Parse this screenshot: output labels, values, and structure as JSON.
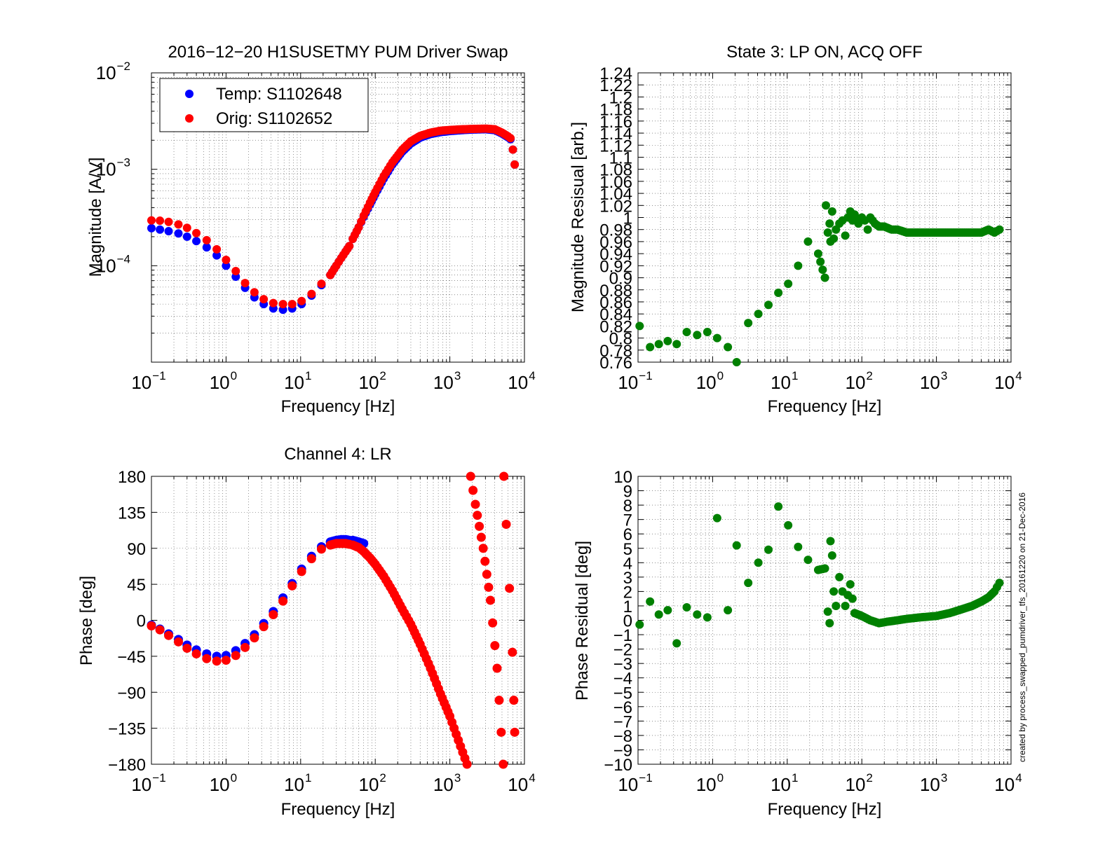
{
  "footer_note": "created by process_swapped_pumdriver_tfs_20161220 on 21-Dec-2016",
  "colors": {
    "temp": "#0000ff",
    "orig": "#ff0000",
    "residual": "#008000"
  },
  "chart_data": [
    {
      "id": "mag",
      "type": "scatter",
      "title": "2016−12−20 H1SUSETMY PUM Driver Swap",
      "xlabel": "Frequency [Hz]",
      "ylabel": "Magnitude [A/V]",
      "xscale": "log",
      "yscale": "log",
      "xlim": [
        0.1,
        10000
      ],
      "ylim": [
        1e-05,
        0.01
      ],
      "x_ticks": [
        0.1,
        1,
        10,
        100,
        1000,
        10000
      ],
      "x_tick_labels": [
        [
          "10",
          "−1"
        ],
        [
          "10",
          "0"
        ],
        [
          "10",
          "1"
        ],
        [
          "10",
          "2"
        ],
        [
          "10",
          "3"
        ],
        [
          "10",
          "4"
        ]
      ],
      "y_ticks": [
        0.0001,
        0.001,
        0.01
      ],
      "y_tick_labels": [
        [
          "10",
          "−4"
        ],
        [
          "10",
          "−3"
        ],
        [
          "10",
          "−2"
        ]
      ],
      "grid": true,
      "legend": {
        "position": "top-left",
        "entries": [
          "Temp: S1102648",
          "Orig: S1102652"
        ]
      },
      "series": [
        {
          "name": "Temp: S1102648",
          "color": "#0000ff",
          "x": [
            0.1,
            0.13,
            0.17,
            0.23,
            0.3,
            0.4,
            0.55,
            0.75,
            1.0,
            1.35,
            1.8,
            2.4,
            3.2,
            4.3,
            5.8,
            7.7,
            10.3,
            14,
            19,
            25,
            30,
            35,
            40,
            45,
            50,
            60,
            70,
            85,
            100,
            130,
            170,
            230,
            300,
            400,
            550,
            750,
            1000,
            1500,
            2000,
            3000,
            4000,
            5000,
            6000,
            6500,
            7000,
            7400
          ],
          "y": [
            0.000245,
            0.000237,
            0.000228,
            0.000216,
            0.0002,
            0.00018,
            0.000155,
            0.000128,
            0.0001,
            7.7e-05,
            5.9e-05,
            4.7e-05,
            4e-05,
            3.6e-05,
            3.5e-05,
            3.6e-05,
            4e-05,
            4.9e-05,
            6.3e-05,
            8e-05,
            0.0001,
            0.00012,
            0.00014,
            0.00016,
            0.00019,
            0.00025,
            0.00032,
            0.00043,
            0.00055,
            0.0008,
            0.00112,
            0.00152,
            0.00185,
            0.00213,
            0.00232,
            0.00243,
            0.00249,
            0.00255,
            0.00258,
            0.0026,
            0.00255,
            0.00235,
            0.00215,
            0.00205,
            0.0016,
            0.00112
          ]
        },
        {
          "name": "Orig: S1102652",
          "color": "#ff0000",
          "x": [
            0.1,
            0.13,
            0.17,
            0.23,
            0.3,
            0.4,
            0.55,
            0.75,
            1.0,
            1.35,
            1.8,
            2.4,
            3.2,
            4.3,
            5.8,
            7.7,
            10.3,
            14,
            19,
            25,
            30,
            35,
            40,
            45,
            50,
            60,
            70,
            85,
            100,
            130,
            170,
            230,
            300,
            400,
            550,
            750,
            1000,
            1500,
            2000,
            3000,
            4000,
            5000,
            6000,
            6500,
            7000,
            7400
          ],
          "y": [
            0.000295,
            0.000293,
            0.000285,
            0.000268,
            0.000247,
            0.000218,
            0.000184,
            0.000148,
            0.000115,
            8.8e-05,
            6.6e-05,
            5.3e-05,
            4.5e-05,
            4.1e-05,
            4e-05,
            4e-05,
            4.3e-05,
            5.1e-05,
            6.5e-05,
            8e-05,
            0.0001,
            0.00012,
            0.00014,
            0.00016,
            0.00019,
            0.00025,
            0.00033,
            0.00045,
            0.00058,
            0.00085,
            0.00118,
            0.0016,
            0.00195,
            0.00222,
            0.0024,
            0.00251,
            0.00256,
            0.0026,
            0.00262,
            0.00264,
            0.0026,
            0.0024,
            0.0022,
            0.0021,
            0.0016,
            0.00112
          ]
        }
      ]
    },
    {
      "id": "magres",
      "type": "scatter",
      "title": "State 3: LP ON, ACQ OFF",
      "xlabel": "Frequency [Hz]",
      "ylabel": "Magnitude Resisual [arb.]",
      "xscale": "log",
      "yscale": "linear",
      "xlim": [
        0.1,
        10000
      ],
      "ylim": [
        0.76,
        1.24
      ],
      "x_ticks": [
        0.1,
        1,
        10,
        100,
        1000,
        10000
      ],
      "x_tick_labels": [
        [
          "10",
          "−1"
        ],
        [
          "10",
          "0"
        ],
        [
          "10",
          "1"
        ],
        [
          "10",
          "2"
        ],
        [
          "10",
          "3"
        ],
        [
          "10",
          "4"
        ]
      ],
      "y_ticks": [
        0.76,
        0.78,
        0.8,
        0.82,
        0.84,
        0.86,
        0.88,
        0.9,
        0.92,
        0.94,
        0.96,
        0.98,
        1,
        1.02,
        1.04,
        1.06,
        1.08,
        1.1,
        1.12,
        1.14,
        1.16,
        1.18,
        1.2,
        1.22,
        1.24
      ],
      "y_tick_labels": [
        "0.76",
        "0.78",
        "0.8",
        "0.82",
        "0.84",
        "0.86",
        "0.88",
        "0.9",
        "0.92",
        "0.94",
        "0.96",
        "0.98",
        "1",
        "1.02",
        "1.04",
        "1.06",
        "1.08",
        "1.1",
        "1.12",
        "1.14",
        "1.16",
        "1.18",
        "1.2",
        "1.22",
        "1.24"
      ],
      "grid": true,
      "series": [
        {
          "color": "#008000",
          "x": [
            0.105,
            0.145,
            0.19,
            0.25,
            0.33,
            0.45,
            0.62,
            0.85,
            1.15,
            1.6,
            2.1,
            3.0,
            4.1,
            5.6,
            7.6,
            10.3,
            14,
            19,
            26,
            32,
            33,
            35,
            37,
            38,
            40,
            42,
            45,
            50,
            55,
            60,
            65,
            70,
            75,
            80,
            90,
            100,
            110,
            120,
            130,
            150,
            170,
            200,
            250,
            300,
            400,
            500,
            700,
            1000,
            1400,
            2000,
            3000,
            4000,
            5000,
            6000,
            7000
          ],
          "y": [
            0.82,
            0.785,
            0.79,
            0.795,
            0.79,
            0.81,
            0.805,
            0.81,
            0.8,
            0.785,
            0.76,
            0.825,
            0.84,
            0.855,
            0.875,
            0.89,
            0.92,
            0.96,
            0.94,
            0.9,
            1.02,
            0.975,
            0.99,
            0.96,
            1.01,
            0.965,
            0.98,
            0.99,
            0.995,
            0.97,
            1.0,
            1.01,
            0.995,
            1.005,
            0.99,
            1.0,
            0.995,
            0.98,
            1.0,
            0.99,
            0.985,
            0.985,
            0.98,
            0.98,
            0.975,
            0.975,
            0.975,
            0.975,
            0.975,
            0.975,
            0.975,
            0.975,
            0.98,
            0.975,
            0.98
          ]
        }
      ]
    },
    {
      "id": "phase",
      "type": "scatter",
      "title": "Channel 4: LR",
      "xlabel": "Frequency [Hz]",
      "ylabel": "Phase [deg]",
      "xscale": "log",
      "yscale": "linear",
      "xlim": [
        0.1,
        10000
      ],
      "ylim": [
        -180,
        180
      ],
      "x_ticks": [
        0.1,
        1,
        10,
        100,
        1000,
        10000
      ],
      "x_tick_labels": [
        [
          "10",
          "−1"
        ],
        [
          "10",
          "0"
        ],
        [
          "10",
          "1"
        ],
        [
          "10",
          "2"
        ],
        [
          "10",
          "3"
        ],
        [
          "10",
          "4"
        ]
      ],
      "y_ticks": [
        -180,
        -135,
        -90,
        -45,
        0,
        45,
        90,
        135,
        180
      ],
      "y_tick_labels": [
        "−180",
        "−135",
        "−90",
        "−45",
        "0",
        "45",
        "90",
        "135",
        "180"
      ],
      "grid": true,
      "series": [
        {
          "name": "Temp: S1102648",
          "color": "#0000ff",
          "x": [
            0.1,
            0.13,
            0.17,
            0.23,
            0.3,
            0.4,
            0.55,
            0.75,
            1.0,
            1.35,
            1.8,
            2.4,
            3.2,
            4.3,
            5.8,
            7.7,
            10.3,
            14,
            19,
            25,
            30,
            35,
            40,
            45,
            50,
            60,
            70
          ],
          "y": [
            -6,
            -11,
            -17,
            -24,
            -31,
            -37,
            -42,
            -45,
            -44,
            -38,
            -29,
            -18,
            -4,
            11,
            28,
            46,
            64,
            80,
            92,
            98,
            100,
            101,
            101,
            100,
            100,
            98,
            96
          ]
        },
        {
          "name": "Orig: S1102652",
          "color": "#ff0000",
          "x": [
            0.1,
            0.13,
            0.17,
            0.23,
            0.3,
            0.4,
            0.55,
            0.75,
            1.0,
            1.35,
            1.8,
            2.4,
            3.2,
            4.3,
            5.8,
            7.7,
            10.3,
            14,
            19,
            25,
            30,
            35,
            40,
            45,
            50,
            60,
            70,
            85,
            100,
            130,
            170,
            230,
            300,
            400,
            550,
            750,
            1000,
            1300,
            1700,
            1900,
            2200,
            2800,
            3500,
            4300,
            5200,
            5300,
            5700,
            6300,
            6900,
            7200,
            7400
          ],
          "y": [
            -7,
            -12,
            -19,
            -27,
            -35,
            -42,
            -48,
            -51,
            -50,
            -44,
            -34,
            -22,
            -8,
            7,
            24,
            43,
            61,
            77,
            89,
            94,
            96,
            96,
            96,
            95,
            94,
            91,
            86,
            78,
            70,
            55,
            37,
            14,
            -5,
            -30,
            -60,
            -92,
            -120,
            -150,
            -180,
            180,
            145,
            90,
            25,
            -60,
            -180,
            180,
            120,
            40,
            -40,
            -100,
            -140
          ]
        }
      ]
    },
    {
      "id": "phaseres",
      "type": "scatter",
      "title": "",
      "xlabel": "Frequency [Hz]",
      "ylabel": "Phase Residual [deg]",
      "xscale": "log",
      "yscale": "linear",
      "xlim": [
        0.1,
        10000
      ],
      "ylim": [
        -10,
        10
      ],
      "x_ticks": [
        0.1,
        1,
        10,
        100,
        1000,
        10000
      ],
      "x_tick_labels": [
        [
          "10",
          "−1"
        ],
        [
          "10",
          "0"
        ],
        [
          "10",
          "1"
        ],
        [
          "10",
          "2"
        ],
        [
          "10",
          "3"
        ],
        [
          "10",
          "4"
        ]
      ],
      "y_ticks": [
        -10,
        -9,
        -8,
        -7,
        -6,
        -5,
        -4,
        -3,
        -2,
        -1,
        0,
        1,
        2,
        3,
        4,
        5,
        6,
        7,
        8,
        9,
        10
      ],
      "y_tick_labels": [
        "−10",
        "−9",
        "−8",
        "−7",
        "−6",
        "−5",
        "−4",
        "−3",
        "−2",
        "−1",
        "0",
        "1",
        "2",
        "3",
        "4",
        "5",
        "6",
        "7",
        "8",
        "9",
        "10"
      ],
      "grid": true,
      "series": [
        {
          "color": "#008000",
          "x": [
            0.105,
            0.145,
            0.19,
            0.25,
            0.33,
            0.45,
            0.62,
            0.85,
            1.15,
            1.6,
            2.1,
            3.0,
            4.1,
            5.6,
            7.6,
            10.3,
            14,
            19,
            26,
            32,
            35,
            37,
            38,
            40,
            42,
            45,
            50,
            55,
            60,
            70,
            80,
            100,
            130,
            170,
            220,
            300,
            400,
            600,
            1000,
            1500,
            2000,
            3000,
            4000,
            5000,
            6000,
            7000
          ],
          "y": [
            -0.3,
            1.3,
            0.4,
            0.7,
            -1.6,
            0.9,
            0.4,
            0.2,
            7.1,
            0.7,
            5.2,
            2.6,
            4.0,
            4.9,
            7.9,
            6.6,
            5.1,
            4.2,
            3.5,
            3.6,
            0.6,
            -0.2,
            5.5,
            4.5,
            2.0,
            1.0,
            3.0,
            2.0,
            1.0,
            2.5,
            0.5,
            0.3,
            0.0,
            -0.2,
            -0.1,
            0.0,
            0.1,
            0.2,
            0.3,
            0.5,
            0.7,
            1.0,
            1.3,
            1.6,
            2.0,
            2.6
          ]
        }
      ]
    }
  ]
}
